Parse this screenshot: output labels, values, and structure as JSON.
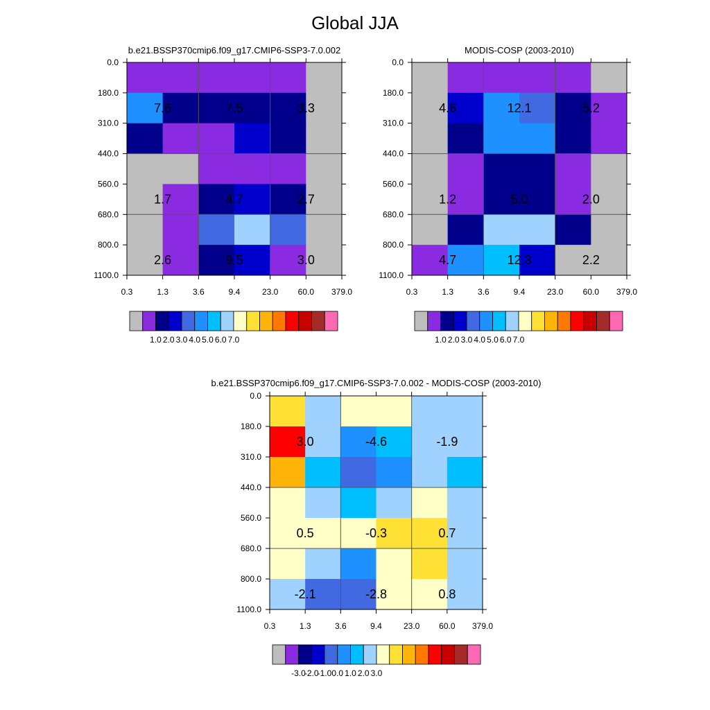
{
  "title": "Global JJA",
  "colors": {
    "main": [
      "#bebebe",
      "#8a2be2",
      "#00008b",
      "#0000cd",
      "#4169e1",
      "#1e90ff",
      "#00bfff",
      "#a0d2ff",
      "#ffffc8",
      "#ffe135",
      "#ffb40a",
      "#ff7800",
      "#ff0000",
      "#c80000",
      "#a52a2a",
      "#ff69b4"
    ],
    "diff": [
      "#bebebe",
      "#8a2be2",
      "#00008b",
      "#0000cd",
      "#4169e1",
      "#1e90ff",
      "#00bfff",
      "#a0d2ff",
      "#ffffc8",
      "#ffe135",
      "#ffb40a",
      "#ff7800",
      "#ff0000",
      "#c80000",
      "#a52a2a",
      "#ff69b4"
    ]
  },
  "chart_data": [
    {
      "type": "heatmap",
      "title": "b.e21.BSSP370cmip6.f09_g17.CMIP6-SSP3-7.0.002",
      "x_ticks": [
        "0.3",
        "1.3",
        "3.6",
        "9.4",
        "23.0",
        "60.0",
        "379.0"
      ],
      "y_ticks": [
        "0.0",
        "180.0",
        "310.0",
        "440.0",
        "560.0",
        "680.0",
        "800.0",
        "1100.0"
      ],
      "cells": [
        [
          1,
          1,
          1,
          1,
          1,
          0
        ],
        [
          5,
          2,
          2,
          2,
          2,
          0
        ],
        [
          2,
          1,
          1,
          3,
          2,
          0
        ],
        [
          0,
          0,
          1,
          1,
          1,
          0
        ],
        [
          0,
          1,
          2,
          3,
          2,
          0
        ],
        [
          0,
          1,
          4,
          7,
          4,
          0
        ],
        [
          0,
          1,
          2,
          3,
          1,
          0
        ]
      ],
      "labels": [
        {
          "text": "7.6",
          "col": 0,
          "row": 1
        },
        {
          "text": "7.5",
          "col": 2,
          "row": 1
        },
        {
          "text": "3.3",
          "col": 4,
          "row": 1
        },
        {
          "text": "1.7",
          "col": 0,
          "row": 4
        },
        {
          "text": "4.7",
          "col": 2,
          "row": 4
        },
        {
          "text": "2.7",
          "col": 4,
          "row": 4
        },
        {
          "text": "2.6",
          "col": 0,
          "row": 6
        },
        {
          "text": "9.5",
          "col": 2,
          "row": 6
        },
        {
          "text": "3.0",
          "col": 4,
          "row": 6
        }
      ],
      "colorbar_labels": [
        "1.0",
        "2.0",
        "3.0",
        "4.0",
        "5.0",
        "6.0",
        "7.0"
      ]
    },
    {
      "type": "heatmap",
      "title": "MODIS-COSP (2003-2010)",
      "x_ticks": [
        "0.3",
        "1.3",
        "3.6",
        "9.4",
        "23.0",
        "60.0",
        "379.0"
      ],
      "y_ticks": [
        "0.0",
        "180.0",
        "310.0",
        "440.0",
        "560.0",
        "680.0",
        "800.0",
        "1100.0"
      ],
      "cells": [
        [
          0,
          1,
          1,
          1,
          1,
          0
        ],
        [
          0,
          3,
          5,
          4,
          2,
          1
        ],
        [
          0,
          2,
          5,
          5,
          2,
          1
        ],
        [
          0,
          1,
          2,
          2,
          1,
          0
        ],
        [
          0,
          1,
          2,
          2,
          1,
          0
        ],
        [
          0,
          2,
          7,
          7,
          2,
          0
        ],
        [
          1,
          5,
          6,
          3,
          0,
          0
        ]
      ],
      "labels": [
        {
          "text": "4.6",
          "col": 0,
          "row": 1
        },
        {
          "text": "12.1",
          "col": 2,
          "row": 1
        },
        {
          "text": "5.2",
          "col": 4,
          "row": 1
        },
        {
          "text": "1.2",
          "col": 0,
          "row": 4
        },
        {
          "text": "5.0",
          "col": 2,
          "row": 4
        },
        {
          "text": "2.0",
          "col": 4,
          "row": 4
        },
        {
          "text": "4.7",
          "col": 0,
          "row": 6
        },
        {
          "text": "12.3",
          "col": 2,
          "row": 6
        },
        {
          "text": "2.2",
          "col": 4,
          "row": 6
        }
      ],
      "colorbar_labels": [
        "1.0",
        "2.0",
        "3.0",
        "4.0",
        "5.0",
        "6.0",
        "7.0"
      ]
    },
    {
      "type": "heatmap",
      "title": "b.e21.BSSP370cmip6.f09_g17.CMIP6-SSP3-7.0.002 - MODIS-COSP (2003-2010)",
      "x_ticks": [
        "0.3",
        "1.3",
        "3.6",
        "9.4",
        "23.0",
        "60.0",
        "379.0"
      ],
      "y_ticks": [
        "0.0",
        "180.0",
        "310.0",
        "440.0",
        "560.0",
        "680.0",
        "800.0",
        "1100.0"
      ],
      "cells": [
        [
          9,
          7,
          8,
          8,
          7,
          7
        ],
        [
          12,
          7,
          5,
          6,
          7,
          7
        ],
        [
          10,
          6,
          4,
          5,
          7,
          6
        ],
        [
          8,
          7,
          6,
          7,
          8,
          7
        ],
        [
          8,
          8,
          8,
          9,
          9,
          7
        ],
        [
          8,
          7,
          5,
          8,
          9,
          7
        ],
        [
          7,
          4,
          4,
          8,
          8,
          7
        ]
      ],
      "labels": [
        {
          "text": "3.0",
          "col": 0,
          "row": 1
        },
        {
          "text": "-4.6",
          "col": 2,
          "row": 1
        },
        {
          "text": "-1.9",
          "col": 4,
          "row": 1
        },
        {
          "text": "0.5",
          "col": 0,
          "row": 4
        },
        {
          "text": "-0.3",
          "col": 2,
          "row": 4
        },
        {
          "text": "0.7",
          "col": 4,
          "row": 4
        },
        {
          "text": "-2.1",
          "col": 0,
          "row": 6
        },
        {
          "text": "-2.8",
          "col": 2,
          "row": 6
        },
        {
          "text": "0.8",
          "col": 4,
          "row": 6
        }
      ],
      "colorbar_labels": [
        "-3.0",
        "-2.0",
        "-1.0",
        "0.0",
        "1.0",
        "2.0",
        "3.0"
      ]
    }
  ]
}
